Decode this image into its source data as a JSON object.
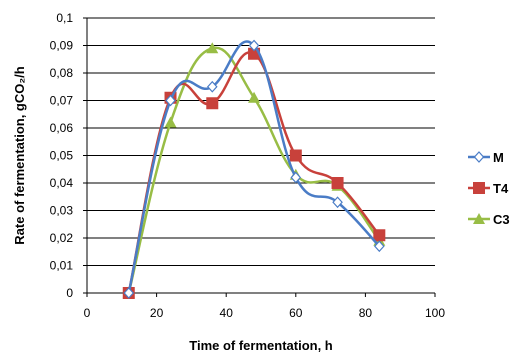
{
  "chart_data": {
    "type": "line",
    "title": "",
    "xlabel": "Time of fermentation, h",
    "ylabel": "Rate of fermentation, gCO₂/h",
    "xlim": [
      0,
      100
    ],
    "ylim": [
      0,
      0.1
    ],
    "x_ticks": [
      0,
      20,
      40,
      60,
      80,
      100
    ],
    "y_ticks": [
      0,
      0.01,
      0.02,
      0.03,
      0.04,
      0.05,
      0.06,
      0.07,
      0.08,
      0.09,
      0.1
    ],
    "x_tick_labels": [
      "0",
      "20",
      "40",
      "60",
      "80",
      "100"
    ],
    "y_tick_labels": [
      "0",
      "0,01",
      "0,02",
      "0,03",
      "0,04",
      "0,05",
      "0,06",
      "0,07",
      "0,08",
      "0,09",
      "0,1"
    ],
    "grid": "horizontal",
    "legend_position": "right",
    "series": [
      {
        "name": "M",
        "color": "#4a7cc6",
        "marker": "diamond",
        "x": [
          12,
          24,
          36,
          48,
          60,
          72,
          84
        ],
        "y": [
          0.0,
          0.07,
          0.075,
          0.09,
          0.042,
          0.033,
          0.017
        ]
      },
      {
        "name": "T4",
        "color": "#c8413b",
        "marker": "square",
        "x": [
          12,
          24,
          36,
          48,
          60,
          72,
          84
        ],
        "y": [
          0.0,
          0.071,
          0.069,
          0.087,
          0.05,
          0.04,
          0.021
        ]
      },
      {
        "name": "C3",
        "color": "#98bd45",
        "marker": "triangle",
        "x": [
          12,
          24,
          36,
          48,
          60,
          72,
          84
        ],
        "y": [
          0.0,
          0.062,
          0.089,
          0.071,
          0.043,
          0.039,
          0.019
        ]
      }
    ]
  }
}
